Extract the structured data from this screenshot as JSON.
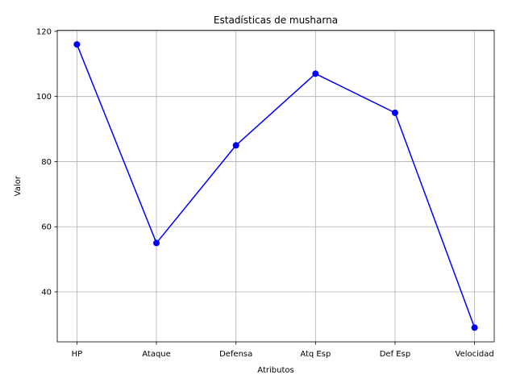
{
  "chart_data": {
    "type": "line",
    "title": "Estadísticas de musharna",
    "xlabel": "Atributos",
    "ylabel": "Valor",
    "categories": [
      "HP",
      "Ataque",
      "Defensa",
      "Atq Esp",
      "Def Esp",
      "Velocidad"
    ],
    "series": [
      {
        "values": [
          116,
          55,
          85,
          107,
          95,
          29
        ],
        "color": "#0000ff",
        "marker": "circle"
      }
    ],
    "yticks": [
      40,
      60,
      80,
      100,
      120
    ],
    "ylim": [
      24.65,
      120.35
    ],
    "grid": true,
    "legend": "none"
  }
}
